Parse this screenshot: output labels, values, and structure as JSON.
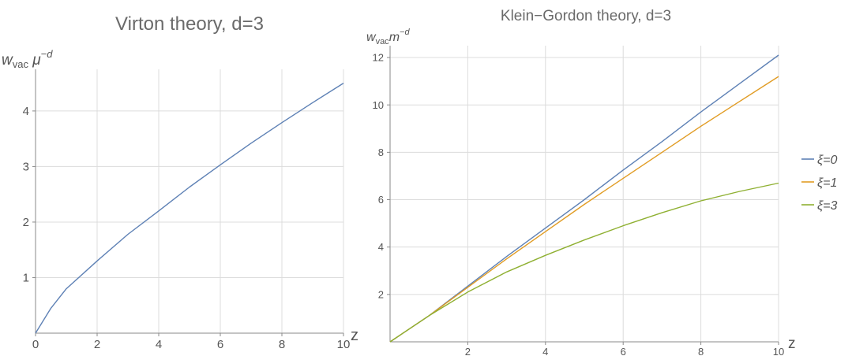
{
  "chart_data": [
    {
      "type": "line",
      "title": "Virton theory, d=3",
      "ylabel_main": "w",
      "ylabel_sub": "vac",
      "ylabel_mid": " μ",
      "ylabel_sup": "−d",
      "xlabel": "z",
      "xlim": [
        0,
        10
      ],
      "ylim": [
        0,
        4.75
      ],
      "xticks": [
        0,
        2,
        4,
        6,
        8,
        10
      ],
      "yticks": [
        1,
        2,
        3,
        4
      ],
      "grid": true,
      "series": [
        {
          "color": "#5e81b5",
          "x": [
            0,
            0.5,
            1,
            2,
            3,
            4,
            5,
            6,
            7,
            8,
            9,
            10
          ],
          "values": [
            0,
            0.45,
            0.8,
            1.3,
            1.78,
            2.2,
            2.63,
            3.03,
            3.42,
            3.79,
            4.15,
            4.5
          ]
        }
      ]
    },
    {
      "type": "line",
      "title": "Klein−Gordon theory, d=3",
      "ylabel_main": "w",
      "ylabel_sub": "vac",
      "ylabel_mid": "m",
      "ylabel_sup": "−d",
      "xlabel": "z",
      "xlim": [
        0,
        10
      ],
      "ylim": [
        0,
        12.5
      ],
      "xticks": [
        2,
        4,
        6,
        8,
        10
      ],
      "yticks": [
        2,
        4,
        6,
        8,
        10,
        12
      ],
      "grid": true,
      "legend": "right",
      "series": [
        {
          "name": "ξ=0",
          "color": "#5e81b5",
          "x": [
            0,
            1,
            2,
            3,
            4,
            5,
            6,
            7,
            8,
            9,
            10
          ],
          "values": [
            0,
            1.1,
            2.35,
            3.6,
            4.8,
            6.0,
            7.25,
            8.45,
            9.7,
            10.9,
            12.1
          ]
        },
        {
          "name": "ξ=1",
          "color": "#e19c24",
          "x": [
            0,
            1,
            2,
            3,
            4,
            5,
            6,
            7,
            8,
            9,
            10
          ],
          "values": [
            0,
            1.1,
            2.3,
            3.5,
            4.65,
            5.8,
            6.9,
            8.0,
            9.1,
            10.15,
            11.2
          ]
        },
        {
          "name": "ξ=3",
          "color": "#8fb032",
          "x": [
            0,
            1,
            2,
            3,
            4,
            5,
            6,
            7,
            8,
            9,
            10
          ],
          "values": [
            0,
            1.1,
            2.1,
            2.95,
            3.65,
            4.3,
            4.9,
            5.45,
            5.95,
            6.35,
            6.7
          ]
        }
      ]
    }
  ]
}
